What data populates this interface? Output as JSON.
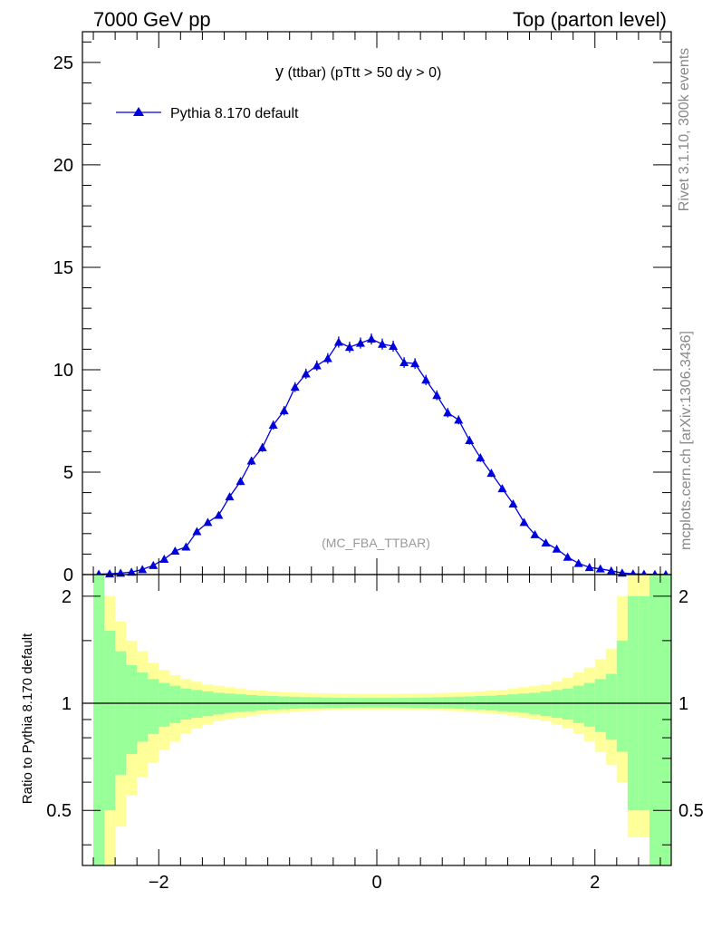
{
  "header": {
    "left": "7000 GeV pp",
    "right": "Top (parton level)"
  },
  "side_labels": {
    "rivet": "Rivet 3.1.10,  300k events",
    "mcplots": "mcplots.cern.ch [arXiv:1306.3436]"
  },
  "main_panel": {
    "title_main": "y",
    "title_rest": " (ttbar) (pTtt > 50 dy > 0)",
    "watermark": "(MC_FBA_TTBAR)",
    "legend_label": "Pythia 8.170 default"
  },
  "ratio_panel": {
    "ylabel": "Ratio to Pythia 8.170 default"
  },
  "colors": {
    "series": "#0000dd",
    "band_inner": "#99ff99",
    "band_outer": "#ffff99"
  },
  "chart_data": [
    {
      "type": "line",
      "name": "main",
      "title": "y (ttbar) (pTtt > 50 dy > 0)",
      "xlabel": "",
      "ylabel": "",
      "xlim": [
        -2.7,
        2.7
      ],
      "ylim": [
        0,
        26.5
      ],
      "yticks": [
        0,
        5,
        10,
        15,
        20,
        25
      ],
      "legend": "top-left",
      "series": [
        {
          "name": "Pythia 8.170 default",
          "x": [
            -2.55,
            -2.45,
            -2.35,
            -2.25,
            -2.15,
            -2.05,
            -1.95,
            -1.85,
            -1.75,
            -1.65,
            -1.55,
            -1.45,
            -1.35,
            -1.25,
            -1.15,
            -1.05,
            -0.95,
            -0.85,
            -0.75,
            -0.65,
            -0.55,
            -0.45,
            -0.35,
            -0.25,
            -0.15,
            -0.05,
            0.05,
            0.15,
            0.25,
            0.35,
            0.45,
            0.55,
            0.65,
            0.75,
            0.85,
            0.95,
            1.05,
            1.15,
            1.25,
            1.35,
            1.45,
            1.55,
            1.65,
            1.75,
            1.85,
            1.95,
            2.05,
            2.15,
            2.25,
            2.35,
            2.45,
            2.55,
            2.65
          ],
          "y": [
            0.02,
            0.04,
            0.07,
            0.12,
            0.25,
            0.45,
            0.75,
            1.15,
            1.35,
            2.1,
            2.55,
            2.9,
            3.8,
            4.55,
            5.55,
            6.2,
            7.3,
            8.0,
            9.15,
            9.8,
            10.2,
            10.55,
            11.35,
            11.1,
            11.3,
            11.5,
            11.25,
            11.15,
            10.35,
            10.3,
            9.5,
            8.75,
            7.9,
            7.55,
            6.55,
            5.7,
            4.95,
            4.2,
            3.45,
            2.55,
            1.95,
            1.55,
            1.25,
            0.85,
            0.55,
            0.35,
            0.28,
            0.18,
            0.08,
            0.04,
            0.02,
            0.01,
            0.005
          ],
          "yerr": [
            0.02,
            0.02,
            0.03,
            0.04,
            0.05,
            0.07,
            0.09,
            0.1,
            0.11,
            0.13,
            0.14,
            0.15,
            0.17,
            0.18,
            0.2,
            0.21,
            0.22,
            0.23,
            0.24,
            0.25,
            0.25,
            0.26,
            0.27,
            0.27,
            0.27,
            0.27,
            0.27,
            0.27,
            0.26,
            0.26,
            0.25,
            0.24,
            0.23,
            0.22,
            0.21,
            0.2,
            0.19,
            0.17,
            0.16,
            0.14,
            0.12,
            0.11,
            0.1,
            0.08,
            0.07,
            0.05,
            0.05,
            0.04,
            0.03,
            0.02,
            0.02,
            0.01,
            0.01
          ]
        }
      ]
    },
    {
      "type": "area",
      "name": "ratio",
      "xlabel": "",
      "ylabel": "Ratio to Pythia 8.170 default",
      "xlim": [
        -2.7,
        2.7
      ],
      "ylim": [
        0.35,
        2.3
      ],
      "yscale": "log",
      "yticks": [
        0.5,
        1,
        2
      ],
      "xticks": [
        -2,
        0,
        2
      ],
      "reference_line": 1,
      "bins": [
        -2.6,
        -2.5,
        -2.4,
        -2.3,
        -2.2,
        -2.1,
        -2.0,
        -1.9,
        -1.8,
        -1.7,
        -1.6,
        -1.5,
        -1.4,
        -1.3,
        -1.2,
        -1.1,
        -1.0,
        -0.9,
        -0.8,
        -0.7,
        -0.6,
        -0.5,
        -0.4,
        -0.3,
        -0.2,
        -0.1,
        0.0,
        0.1,
        0.2,
        0.3,
        0.4,
        0.5,
        0.6,
        0.7,
        0.8,
        0.9,
        1.0,
        1.1,
        1.2,
        1.3,
        1.4,
        1.5,
        1.6,
        1.7,
        1.8,
        1.9,
        2.0,
        2.1,
        2.2,
        2.3,
        2.4,
        2.5,
        2.6,
        2.7
      ],
      "series": [
        {
          "name": "stat uncertainty (inner band)",
          "lower": [
            0.3,
            0.5,
            0.63,
            0.72,
            0.78,
            0.82,
            0.86,
            0.88,
            0.9,
            0.91,
            0.92,
            0.93,
            0.94,
            0.945,
            0.95,
            0.955,
            0.96,
            0.962,
            0.965,
            0.967,
            0.968,
            0.97,
            0.97,
            0.972,
            0.972,
            0.973,
            0.973,
            0.972,
            0.972,
            0.97,
            0.97,
            0.968,
            0.967,
            0.965,
            0.962,
            0.96,
            0.955,
            0.95,
            0.945,
            0.94,
            0.93,
            0.92,
            0.91,
            0.9,
            0.88,
            0.86,
            0.83,
            0.79,
            0.73,
            0.5,
            0.5,
            0.3,
            0.3
          ],
          "upper": [
            3.0,
            1.6,
            1.4,
            1.28,
            1.22,
            1.17,
            1.14,
            1.12,
            1.1,
            1.09,
            1.08,
            1.07,
            1.065,
            1.06,
            1.055,
            1.05,
            1.048,
            1.045,
            1.043,
            1.041,
            1.04,
            1.038,
            1.037,
            1.036,
            1.035,
            1.035,
            1.035,
            1.035,
            1.036,
            1.037,
            1.038,
            1.04,
            1.041,
            1.043,
            1.045,
            1.048,
            1.05,
            1.055,
            1.06,
            1.065,
            1.07,
            1.08,
            1.09,
            1.1,
            1.12,
            1.14,
            1.17,
            1.21,
            1.5,
            2.0,
            2.0,
            3.0,
            3.0
          ]
        },
        {
          "name": "total uncertainty (outer band)",
          "lower": [
            0.2,
            0.35,
            0.45,
            0.55,
            0.62,
            0.68,
            0.74,
            0.78,
            0.82,
            0.85,
            0.87,
            0.89,
            0.9,
            0.91,
            0.92,
            0.93,
            0.935,
            0.94,
            0.945,
            0.95,
            0.952,
            0.955,
            0.957,
            0.958,
            0.96,
            0.96,
            0.96,
            0.96,
            0.96,
            0.958,
            0.957,
            0.955,
            0.952,
            0.95,
            0.945,
            0.94,
            0.935,
            0.93,
            0.92,
            0.91,
            0.9,
            0.89,
            0.87,
            0.85,
            0.82,
            0.78,
            0.73,
            0.67,
            0.6,
            0.42,
            0.42,
            0.2,
            0.2
          ],
          "upper": [
            5.0,
            2.0,
            1.7,
            1.5,
            1.4,
            1.3,
            1.24,
            1.2,
            1.17,
            1.15,
            1.13,
            1.12,
            1.11,
            1.1,
            1.09,
            1.085,
            1.08,
            1.075,
            1.072,
            1.07,
            1.068,
            1.066,
            1.065,
            1.064,
            1.063,
            1.063,
            1.063,
            1.063,
            1.064,
            1.065,
            1.066,
            1.068,
            1.07,
            1.072,
            1.075,
            1.08,
            1.085,
            1.09,
            1.1,
            1.11,
            1.12,
            1.13,
            1.15,
            1.18,
            1.22,
            1.26,
            1.33,
            1.42,
            2.0,
            2.6,
            2.6,
            5.0,
            5.0
          ]
        }
      ]
    }
  ]
}
